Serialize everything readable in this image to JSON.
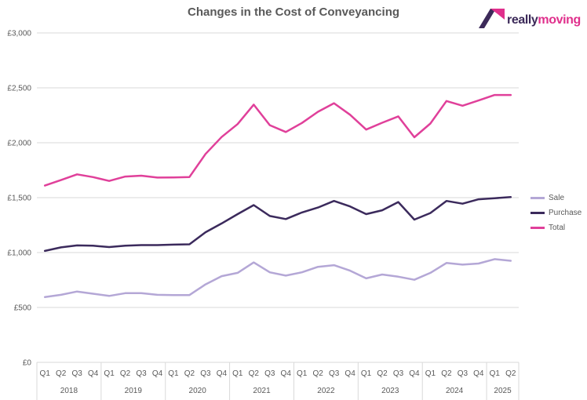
{
  "logo": {
    "word1": "really",
    "word2": "moving"
  },
  "chart_data": {
    "type": "line",
    "title": "Changes in the Cost of Conveyancing",
    "xlabel": "",
    "ylabel": "",
    "ylim": [
      0,
      3000
    ],
    "y_ticks": [
      0,
      500,
      1000,
      1500,
      2000,
      2500,
      3000
    ],
    "y_tick_labels": [
      "£0",
      "£500",
      "£1,000",
      "£1,500",
      "£2,000",
      "£2,500",
      "£3,000"
    ],
    "grid": true,
    "legend_position": "right",
    "categories": [
      "Q1",
      "Q2",
      "Q3",
      "Q4",
      "Q1",
      "Q2",
      "Q3",
      "Q4",
      "Q1",
      "Q2",
      "Q3",
      "Q4",
      "Q1",
      "Q2",
      "Q3",
      "Q4",
      "Q1",
      "Q2",
      "Q3",
      "Q4",
      "Q1",
      "Q2",
      "Q3",
      "Q4",
      "Q1",
      "Q2",
      "Q3",
      "Q4",
      "Q1",
      "Q2"
    ],
    "years": [
      {
        "label": "2018",
        "count": 4
      },
      {
        "label": "2019",
        "count": 4
      },
      {
        "label": "2020",
        "count": 4
      },
      {
        "label": "2021",
        "count": 4
      },
      {
        "label": "2022",
        "count": 4
      },
      {
        "label": "2023",
        "count": 4
      },
      {
        "label": "2024",
        "count": 4
      },
      {
        "label": "2025",
        "count": 2
      }
    ],
    "series": [
      {
        "name": "Sale",
        "color": "#b4a7d6",
        "values": [
          595,
          615,
          645,
          625,
          605,
          630,
          630,
          615,
          612,
          613,
          710,
          785,
          815,
          910,
          820,
          790,
          820,
          870,
          885,
          835,
          765,
          800,
          780,
          752,
          815,
          905,
          890,
          900,
          940,
          925
        ]
      },
      {
        "name": "Purchase",
        "color": "#3b2a5c",
        "values": [
          1015,
          1047,
          1065,
          1062,
          1050,
          1062,
          1068,
          1068,
          1072,
          1075,
          1185,
          1265,
          1350,
          1432,
          1333,
          1305,
          1365,
          1410,
          1470,
          1420,
          1350,
          1385,
          1460,
          1300,
          1360,
          1470,
          1445,
          1485,
          1495,
          1505
        ]
      },
      {
        "name": "Total",
        "color": "#e0409a",
        "values": [
          1610,
          1660,
          1712,
          1687,
          1652,
          1692,
          1700,
          1683,
          1684,
          1688,
          1898,
          2052,
          2170,
          2347,
          2160,
          2098,
          2180,
          2282,
          2360,
          2255,
          2120,
          2182,
          2240,
          2050,
          2175,
          2380,
          2337,
          2385,
          2435,
          2435
        ]
      }
    ]
  }
}
